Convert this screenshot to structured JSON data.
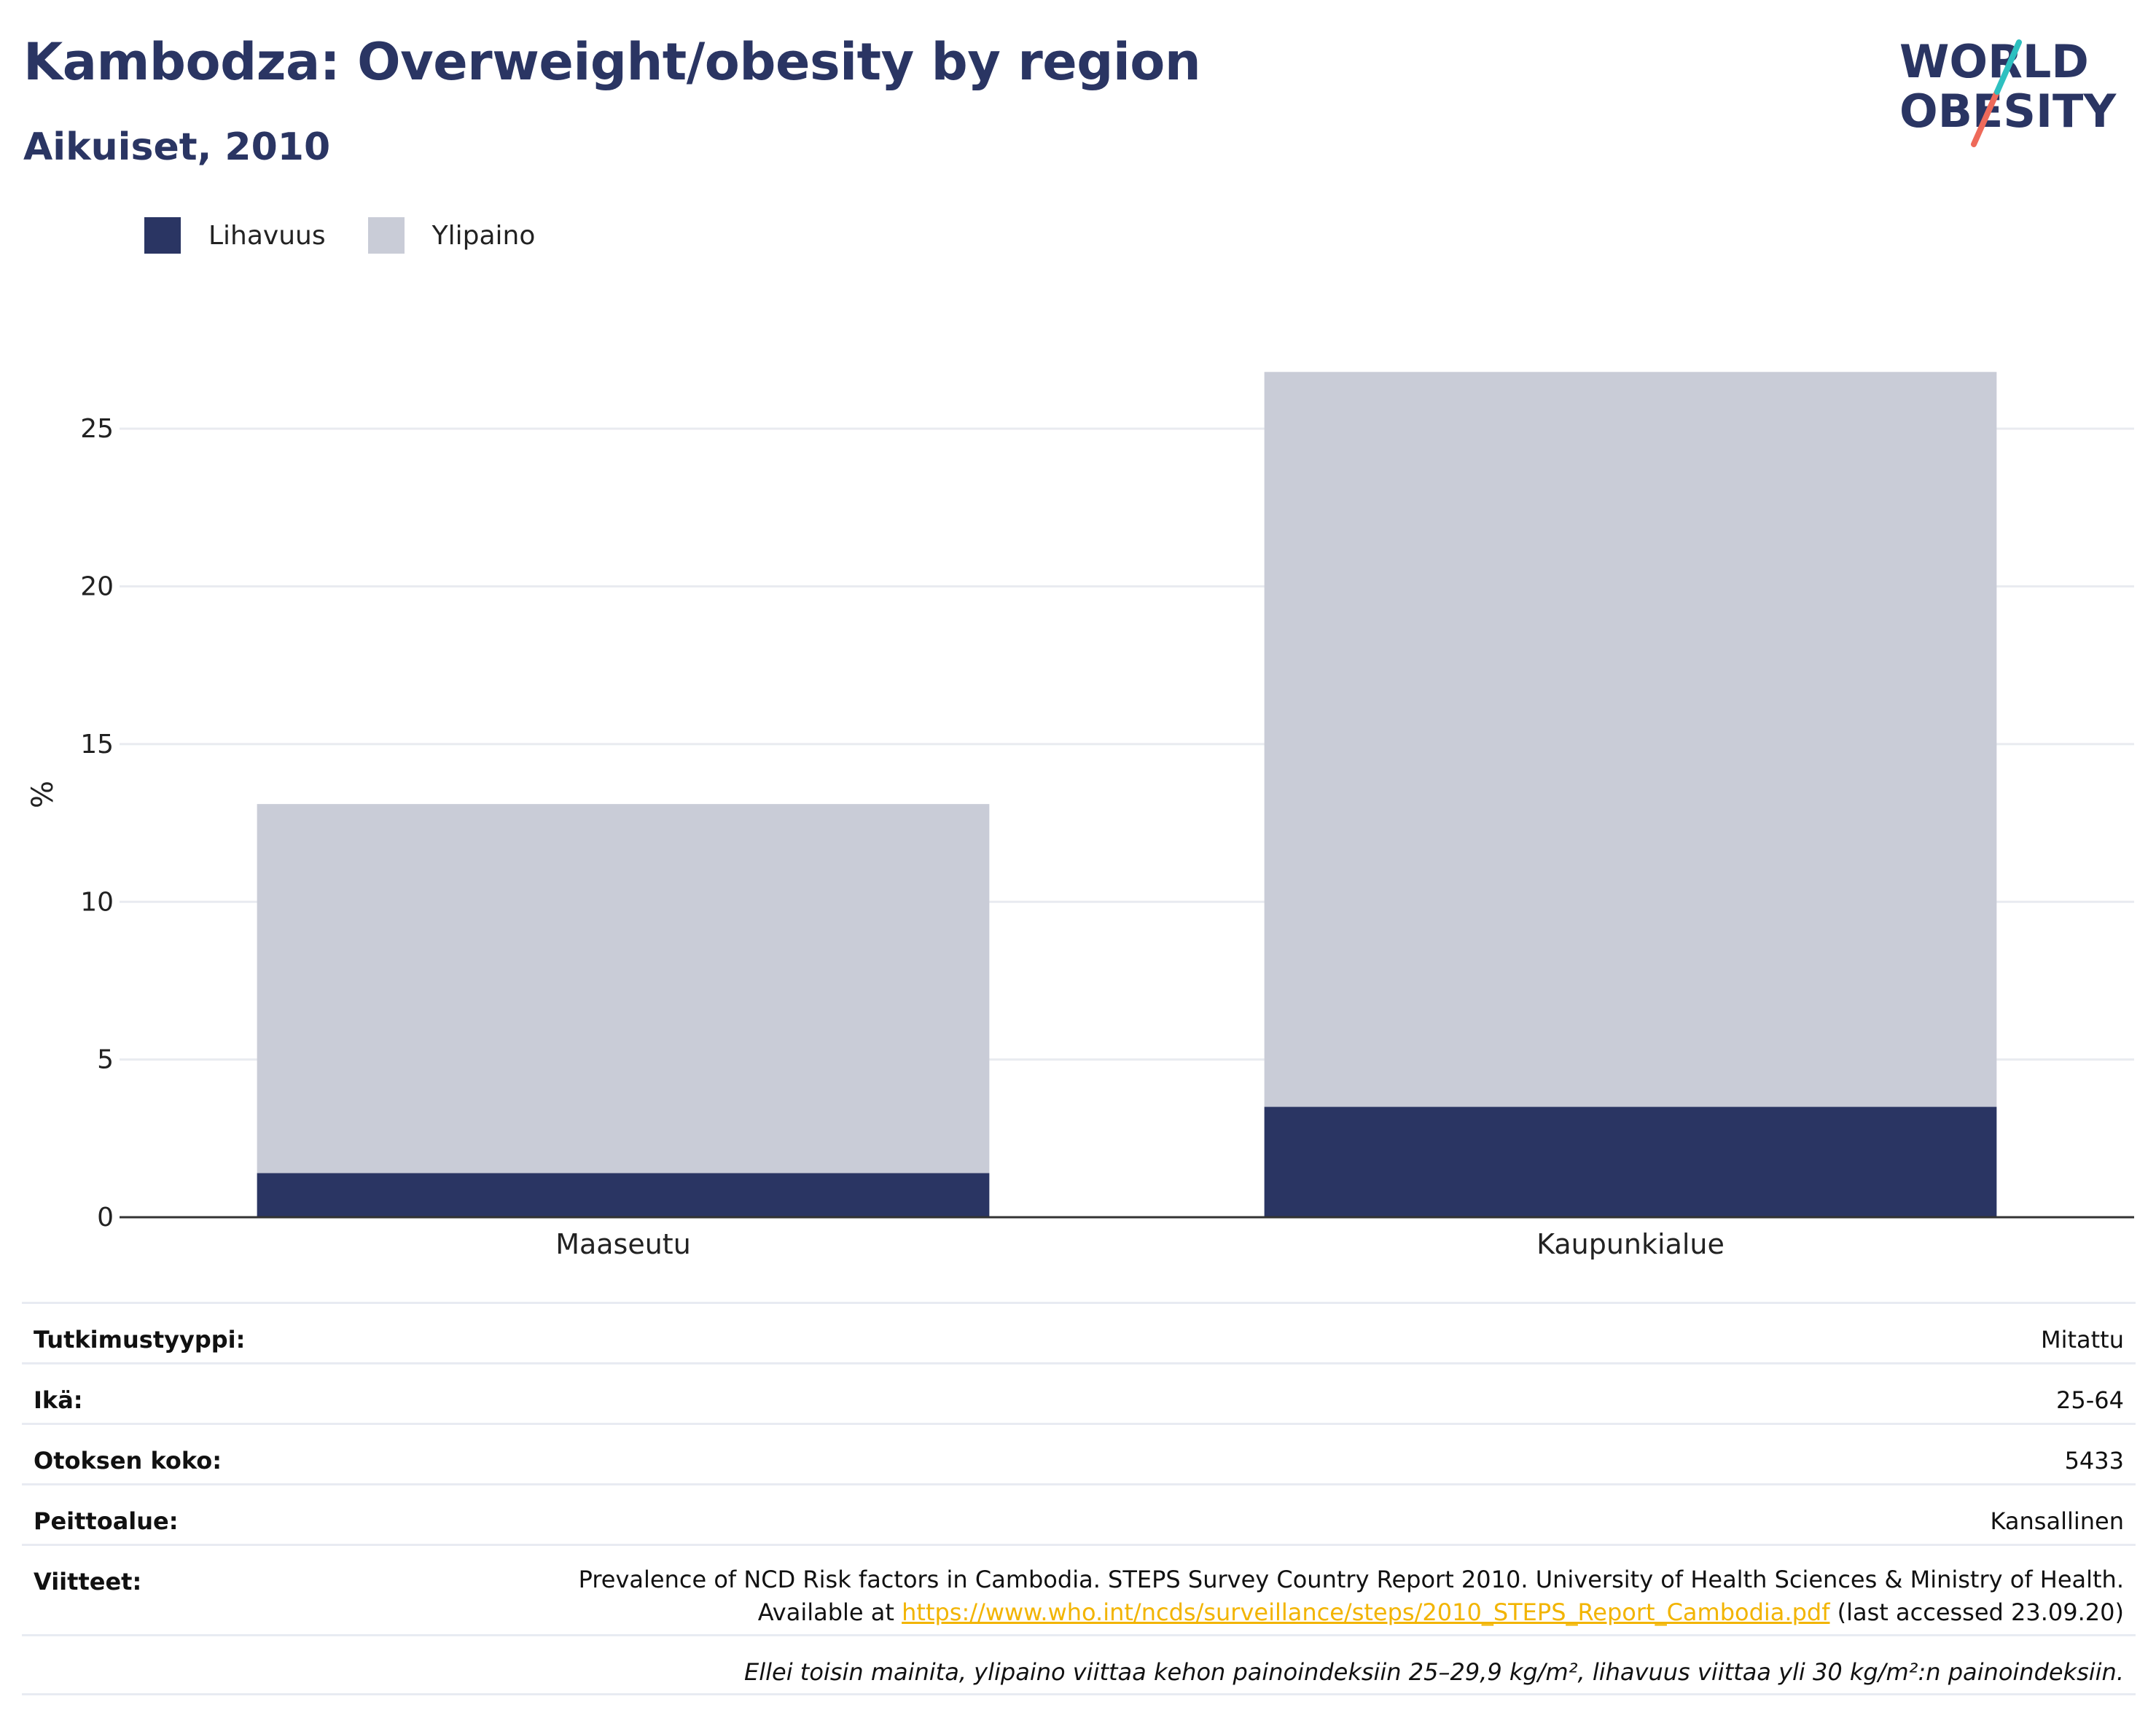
{
  "title": "Kambodza: Overweight/obesity by region",
  "subtitle": "Aikuiset, 2010",
  "logo": {
    "line1": "WORLD",
    "line2": "OBESITY"
  },
  "legend": [
    {
      "label": "Lihavuus",
      "color": "#2a3563"
    },
    {
      "label": "Ylipaino",
      "color": "#c9ccd7"
    }
  ],
  "chart_data": {
    "type": "bar",
    "stacked": true,
    "categories": [
      "Maaseutu",
      "Kaupunkialue"
    ],
    "series": [
      {
        "name": "Lihavuus",
        "values": [
          1.4,
          3.5
        ],
        "color": "#2a3563"
      },
      {
        "name": "Ylipaino",
        "values": [
          11.7,
          23.3
        ],
        "color": "#c9ccd7"
      }
    ],
    "ylabel": "%",
    "ylim": [
      0,
      27.5
    ],
    "yticks": [
      "0",
      "5",
      "10",
      "15",
      "20",
      "25"
    ],
    "grid": true
  },
  "info": {
    "study_type": {
      "label": "Tutkimustyyppi:",
      "value": "Mitattu"
    },
    "age": {
      "label": "Ikä:",
      "value": "25-64"
    },
    "sample": {
      "label": "Otoksen koko:",
      "value": "5433"
    },
    "coverage": {
      "label": "Peittoalue:",
      "value": "Kansallinen"
    },
    "refs": {
      "label": "Viitteet:",
      "line1": "Prevalence of NCD Risk factors in Cambodia. STEPS Survey Country Report 2010. University of Health Sciences & Ministry of Health.",
      "prefix": "Available at ",
      "url": "https://www.who.int/ncds/surveillance/steps/2010_STEPS_Report_Cambodia.pdf",
      "suffix": " (last accessed 23.09.20)"
    },
    "note": "Ellei toisin mainita, ylipaino viittaa kehon painoindeksiin 25–29,9 kg/m², lihavuus viittaa yli 30 kg/m²:n painoindeksiin."
  }
}
